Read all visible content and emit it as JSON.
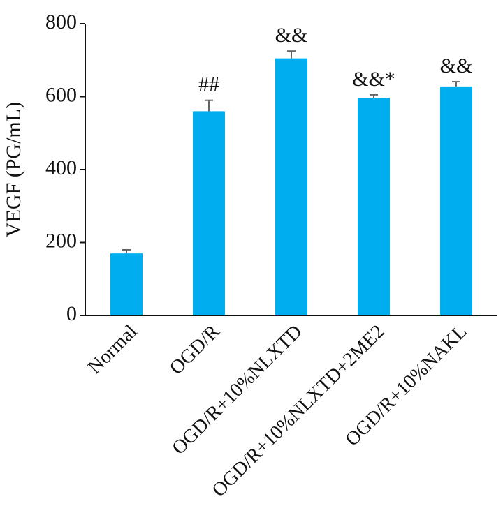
{
  "chart_data": {
    "type": "bar",
    "y_label": "VEGF (PG/mL)",
    "categories": [
      "Normal",
      "OGD/R",
      "OGD/R+10%NLXTD",
      "OGD/R+10%NLXTD+2ME2",
      "OGD/R+10%NAKL"
    ],
    "values": [
      170,
      560,
      705,
      597,
      628
    ],
    "errors": [
      10,
      30,
      20,
      8,
      13
    ],
    "annotations": [
      null,
      "##",
      "&&",
      "&&*",
      "&&"
    ],
    "color": "#00adee",
    "ylim": [
      0,
      800
    ],
    "yticks": [
      0,
      200,
      400,
      600,
      800
    ]
  }
}
